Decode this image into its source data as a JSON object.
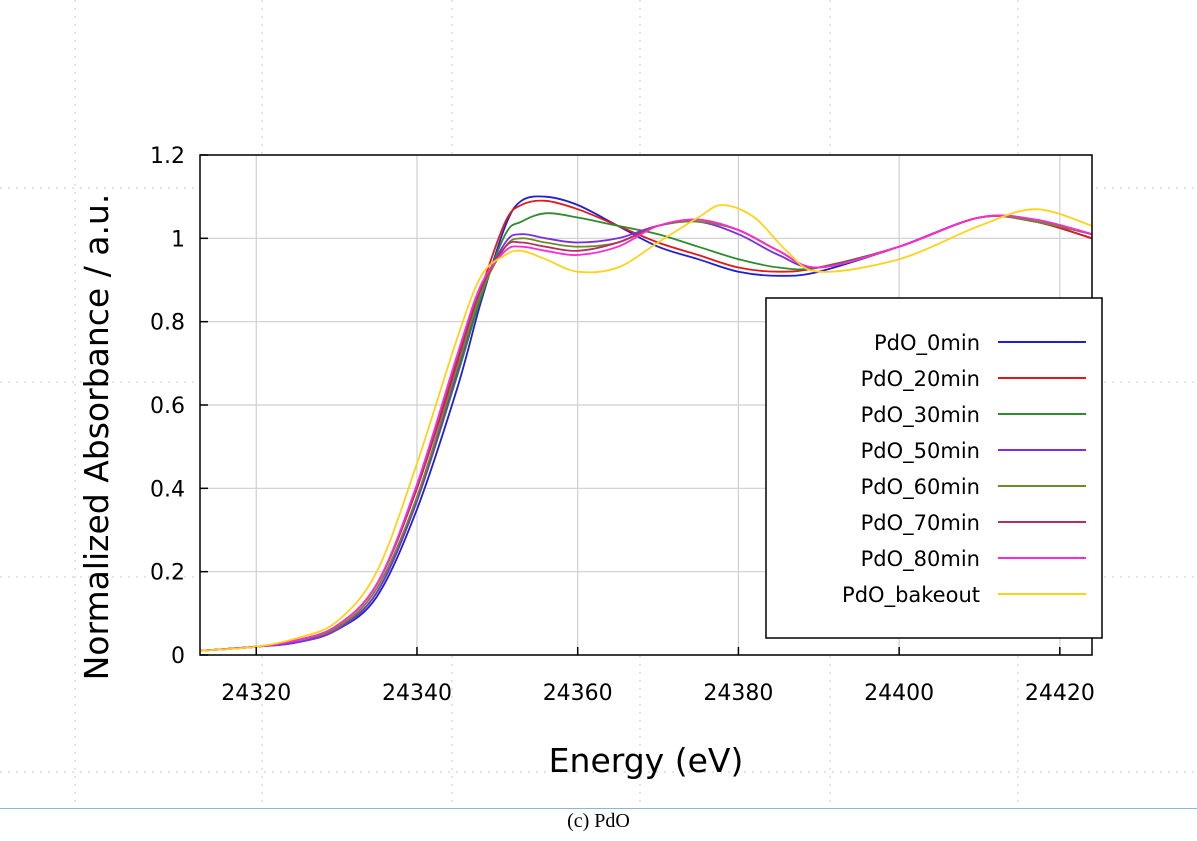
{
  "chart_data": {
    "type": "line",
    "xlabel": "Energy (eV)",
    "ylabel": "Normalized Absorbance / a.u.",
    "xlim": [
      24313,
      24424
    ],
    "ylim": [
      0,
      1.2
    ],
    "xticks": [
      24320,
      24340,
      24360,
      24380,
      24400,
      24420
    ],
    "yticks": [
      0,
      0.2,
      0.4,
      0.6,
      0.8,
      1,
      1.2
    ],
    "ytick_labels": [
      "0",
      "0.2",
      "0.4",
      "0.6",
      "0.8",
      "1",
      "1.2"
    ],
    "grid": true,
    "legend_position": "right",
    "series": [
      {
        "name": "PdO_0min",
        "color": "#1f1fd6",
        "x": [
          24313,
          24320,
          24325,
          24330,
          24335,
          24340,
          24345,
          24348,
          24351,
          24353,
          24356,
          24360,
          24365,
          24370,
          24375,
          24380,
          24385,
          24390,
          24400,
          24410,
          24417,
          24424
        ],
        "y": [
          0.01,
          0.02,
          0.03,
          0.06,
          0.14,
          0.35,
          0.64,
          0.85,
          1.03,
          1.09,
          1.1,
          1.08,
          1.03,
          0.98,
          0.95,
          0.92,
          0.91,
          0.92,
          0.98,
          1.05,
          1.04,
          1.0
        ]
      },
      {
        "name": "PdO_20min",
        "color": "#e01a1a",
        "x": [
          24313,
          24320,
          24325,
          24330,
          24335,
          24340,
          24345,
          24348,
          24351,
          24353,
          24356,
          24360,
          24365,
          24370,
          24375,
          24380,
          24385,
          24390,
          24400,
          24410,
          24417,
          24424
        ],
        "y": [
          0.01,
          0.02,
          0.035,
          0.07,
          0.17,
          0.4,
          0.7,
          0.88,
          1.04,
          1.08,
          1.09,
          1.07,
          1.03,
          0.99,
          0.96,
          0.93,
          0.92,
          0.93,
          0.98,
          1.05,
          1.04,
          1.0
        ]
      },
      {
        "name": "PdO_30min",
        "color": "#2e8b2e",
        "x": [
          24313,
          24320,
          24325,
          24330,
          24335,
          24340,
          24345,
          24348,
          24351,
          24353,
          24356,
          24360,
          24365,
          24370,
          24375,
          24380,
          24385,
          24390,
          24400,
          24410,
          24417,
          24424
        ],
        "y": [
          0.01,
          0.02,
          0.035,
          0.065,
          0.15,
          0.37,
          0.67,
          0.86,
          1.01,
          1.04,
          1.06,
          1.05,
          1.03,
          1.01,
          0.98,
          0.95,
          0.93,
          0.93,
          0.98,
          1.05,
          1.04,
          1.01
        ]
      },
      {
        "name": "PdO_50min",
        "color": "#7b2fe0",
        "x": [
          24313,
          24320,
          24325,
          24330,
          24335,
          24340,
          24345,
          24348,
          24351,
          24353,
          24356,
          24360,
          24365,
          24370,
          24375,
          24380,
          24385,
          24390,
          24400,
          24410,
          24417,
          24424
        ],
        "y": [
          0.01,
          0.02,
          0.03,
          0.06,
          0.15,
          0.37,
          0.68,
          0.87,
          0.99,
          1.01,
          1.0,
          0.99,
          1.0,
          1.03,
          1.04,
          1.01,
          0.96,
          0.93,
          0.98,
          1.05,
          1.04,
          1.01
        ]
      },
      {
        "name": "PdO_60min",
        "color": "#6b8e23",
        "x": [
          24313,
          24320,
          24325,
          24330,
          24335,
          24340,
          24345,
          24348,
          24351,
          24353,
          24356,
          24360,
          24365,
          24370,
          24375,
          24380,
          24385,
          24390,
          24400,
          24410,
          24417,
          24424
        ],
        "y": [
          0.01,
          0.02,
          0.035,
          0.065,
          0.16,
          0.38,
          0.69,
          0.87,
          0.98,
          1.0,
          0.99,
          0.98,
          0.99,
          1.03,
          1.04,
          1.02,
          0.97,
          0.93,
          0.98,
          1.05,
          1.04,
          1.01
        ]
      },
      {
        "name": "PdO_70min",
        "color": "#b03060",
        "x": [
          24313,
          24320,
          24325,
          24330,
          24335,
          24340,
          24345,
          24348,
          24351,
          24353,
          24356,
          24360,
          24365,
          24370,
          24375,
          24380,
          24385,
          24390,
          24400,
          24410,
          24417,
          24424
        ],
        "y": [
          0.01,
          0.02,
          0.035,
          0.07,
          0.17,
          0.4,
          0.71,
          0.88,
          0.98,
          0.99,
          0.98,
          0.97,
          0.99,
          1.03,
          1.045,
          1.02,
          0.97,
          0.93,
          0.98,
          1.05,
          1.045,
          1.01
        ]
      },
      {
        "name": "PdO_80min",
        "color": "#ff2ad4",
        "x": [
          24313,
          24320,
          24325,
          24330,
          24335,
          24340,
          24345,
          24348,
          24351,
          24353,
          24356,
          24360,
          24365,
          24370,
          24375,
          24380,
          24385,
          24390,
          24400,
          24410,
          24417,
          24424
        ],
        "y": [
          0.01,
          0.02,
          0.035,
          0.07,
          0.17,
          0.41,
          0.72,
          0.89,
          0.97,
          0.98,
          0.97,
          0.96,
          0.98,
          1.03,
          1.045,
          1.02,
          0.97,
          0.93,
          0.98,
          1.05,
          1.045,
          1.01
        ]
      },
      {
        "name": "PdO_bakeout",
        "color": "#ffd21a",
        "x": [
          24313,
          24320,
          24325,
          24330,
          24335,
          24340,
          24345,
          24348,
          24351,
          24353,
          24356,
          24360,
          24365,
          24370,
          24375,
          24378,
          24382,
          24386,
          24390,
          24400,
          24410,
          24417,
          24424
        ],
        "y": [
          0.01,
          0.02,
          0.04,
          0.08,
          0.2,
          0.46,
          0.76,
          0.91,
          0.96,
          0.97,
          0.95,
          0.92,
          0.93,
          0.99,
          1.05,
          1.08,
          1.05,
          0.97,
          0.92,
          0.95,
          1.03,
          1.07,
          1.03
        ]
      }
    ]
  },
  "caption": "(c) PdO"
}
